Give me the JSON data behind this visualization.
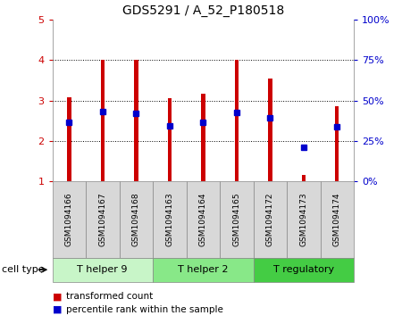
{
  "title": "GDS5291 / A_52_P180518",
  "samples": [
    "GSM1094166",
    "GSM1094167",
    "GSM1094168",
    "GSM1094163",
    "GSM1094164",
    "GSM1094165",
    "GSM1094172",
    "GSM1094173",
    "GSM1094174"
  ],
  "red_values": [
    3.07,
    4.0,
    4.0,
    3.05,
    3.17,
    4.0,
    3.55,
    1.15,
    2.85
  ],
  "blue_values": [
    2.45,
    2.72,
    2.68,
    2.38,
    2.45,
    2.7,
    2.58,
    1.85,
    2.35
  ],
  "ylim_left": [
    1,
    5
  ],
  "ylim_right": [
    0,
    100
  ],
  "yticks_left": [
    1,
    2,
    3,
    4,
    5
  ],
  "yticks_right": [
    0,
    25,
    50,
    75,
    100
  ],
  "ytick_labels_right": [
    "0%",
    "25%",
    "50%",
    "75%",
    "100%"
  ],
  "cell_groups": [
    {
      "label": "T helper 9",
      "start": 0,
      "end": 3,
      "color": "#c8f5c8"
    },
    {
      "label": "T helper 2",
      "start": 3,
      "end": 6,
      "color": "#88e888"
    },
    {
      "label": "T regulatory",
      "start": 6,
      "end": 9,
      "color": "#44cc44"
    }
  ],
  "cell_type_label": "cell type",
  "legend_red": "transformed count",
  "legend_blue": "percentile rank within the sample",
  "red_color": "#cc0000",
  "blue_color": "#0000cc",
  "bar_width": 0.12
}
